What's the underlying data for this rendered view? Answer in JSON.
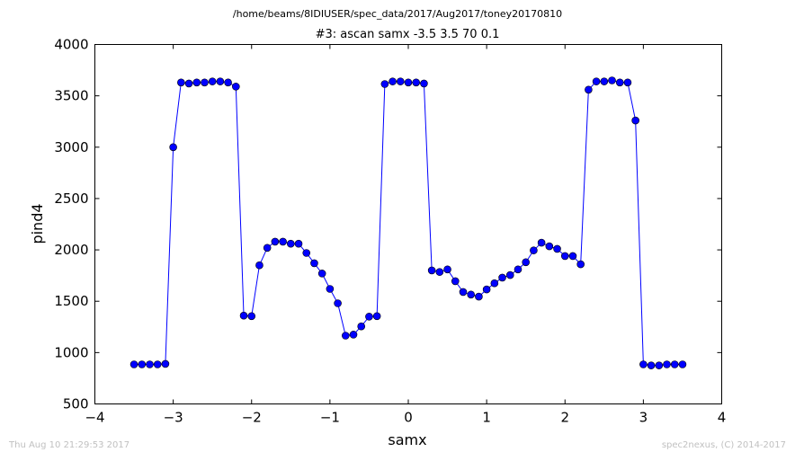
{
  "page": {
    "path_title": "/home/beams/8IDIUSER/spec_data/2017/Aug2017/toney20170810",
    "footer_left": "Thu Aug 10 21:29:53 2017",
    "footer_right": "spec2nexus, (C) 2014-2017"
  },
  "chart_data": {
    "type": "line",
    "title": "#3: ascan  samx -3.5 3.5  70 0.1",
    "xlabel": "samx",
    "ylabel": "pind4",
    "xlim": [
      -4,
      4
    ],
    "ylim": [
      500,
      4000
    ],
    "xticks": [
      -4,
      -3,
      -2,
      -1,
      0,
      1,
      2,
      3,
      4
    ],
    "xtick_labels": [
      "−4",
      "−3",
      "−2",
      "−1",
      "0",
      "1",
      "2",
      "3",
      "4"
    ],
    "yticks": [
      500,
      1000,
      1500,
      2000,
      2500,
      3000,
      3500,
      4000
    ],
    "ytick_labels": [
      "500",
      "1000",
      "1500",
      "2000",
      "2500",
      "3000",
      "3500",
      "4000"
    ],
    "grid": false,
    "legend": "none",
    "series_color": "#0000ff",
    "marker": "circle",
    "x": [
      -3.5,
      -3.4,
      -3.3,
      -3.2,
      -3.1,
      -3.0,
      -2.9,
      -2.8,
      -2.7,
      -2.6,
      -2.5,
      -2.4,
      -2.3,
      -2.2,
      -2.1,
      -2.0,
      -1.9,
      -1.8,
      -1.7,
      -1.6,
      -1.5,
      -1.4,
      -1.3,
      -1.2,
      -1.1,
      -1.0,
      -0.9,
      -0.8,
      -0.7,
      -0.6,
      -0.5,
      -0.4,
      -0.3,
      -0.2,
      -0.1,
      0.0,
      0.1,
      0.2,
      0.3,
      0.4,
      0.5,
      0.6,
      0.7,
      0.8,
      0.9,
      1.0,
      1.1,
      1.2,
      1.3,
      1.4,
      1.5,
      1.6,
      1.7,
      1.8,
      1.9,
      2.0,
      2.1,
      2.2,
      2.3,
      2.4,
      2.5,
      2.6,
      2.7,
      2.8,
      2.9,
      3.0,
      3.1,
      3.2,
      3.3,
      3.4,
      3.5
    ],
    "y": [
      885,
      885,
      885,
      885,
      890,
      3000,
      3630,
      3620,
      3630,
      3630,
      3640,
      3640,
      3630,
      3590,
      1360,
      1355,
      1850,
      2020,
      2080,
      2080,
      2060,
      2060,
      1970,
      1870,
      1770,
      1620,
      1480,
      1165,
      1175,
      1255,
      1350,
      1355,
      3615,
      3640,
      3640,
      3630,
      3630,
      3620,
      1800,
      1785,
      1810,
      1695,
      1590,
      1565,
      1545,
      1615,
      1675,
      1730,
      1755,
      1810,
      1880,
      1995,
      2070,
      2035,
      2010,
      1940,
      1940,
      1860,
      3560,
      3640,
      3640,
      3650,
      3630,
      3630,
      3260,
      885,
      875,
      875,
      885,
      885,
      885
    ]
  }
}
